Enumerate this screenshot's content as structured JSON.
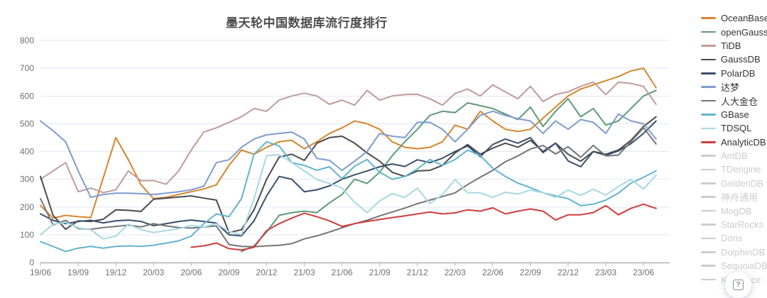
{
  "title": {
    "text": "墨天轮中国数据库流行度排行"
  },
  "help_button": {
    "label": "?"
  },
  "axis_colors": {
    "grid_line": "#E2E7F1",
    "axis_line": "#8F949E",
    "tick": "#B0B4BC",
    "label": "#6E7079"
  },
  "chart_data": {
    "type": "line",
    "title": "墨天轮中国数据库流行度排行",
    "xlabel": "",
    "ylabel": "",
    "ylim": [
      0,
      800
    ],
    "y_ticks": [
      0,
      100,
      200,
      300,
      400,
      500,
      600,
      700,
      800
    ],
    "grid": true,
    "legend_position": "right",
    "x_tick_interval": 3,
    "x_tick_labels": [
      "19/06",
      "19/09",
      "19/12",
      "20/03",
      "20/06",
      "20/09",
      "20/12",
      "21/03",
      "21/06",
      "21/09",
      "21/12",
      "22/03",
      "22/06",
      "22/09",
      "22/12",
      "23/03",
      "23/06"
    ],
    "x": [
      "19/06",
      "19/07",
      "19/08",
      "19/09",
      "19/10",
      "19/11",
      "19/12",
      "20/01",
      "20/02",
      "20/03",
      "20/04",
      "20/05",
      "20/06",
      "20/07",
      "20/08",
      "20/09",
      "20/10",
      "20/11",
      "20/12",
      "21/01",
      "21/02",
      "21/03",
      "21/04",
      "21/05",
      "21/06",
      "21/07",
      "21/08",
      "21/09",
      "21/10",
      "21/11",
      "21/12",
      "22/01",
      "22/02",
      "22/03",
      "22/04",
      "22/05",
      "22/06",
      "22/07",
      "22/08",
      "22/09",
      "22/10",
      "22/11",
      "22/12",
      "23/01",
      "23/02",
      "23/03",
      "23/04",
      "23/05",
      "23/06",
      "23/07"
    ],
    "series": [
      {
        "name": "OceanBase",
        "color": "#D6852C",
        "active": true,
        "values": [
          205,
          160,
          170,
          165,
          162,
          305,
          450,
          370,
          280,
          230,
          235,
          245,
          255,
          265,
          280,
          350,
          405,
          390,
          415,
          435,
          440,
          410,
          435,
          465,
          485,
          510,
          500,
          480,
          435,
          415,
          410,
          415,
          435,
          495,
          480,
          545,
          510,
          480,
          472,
          480,
          520,
          560,
          600,
          625,
          640,
          655,
          670,
          690,
          700,
          630
        ]
      },
      {
        "name": "openGauss",
        "color": "#5E9B77",
        "active": true,
        "values": [
          null,
          null,
          null,
          null,
          null,
          null,
          null,
          null,
          null,
          null,
          null,
          null,
          null,
          null,
          null,
          null,
          40,
          60,
          110,
          170,
          180,
          185,
          180,
          215,
          245,
          300,
          285,
          325,
          385,
          435,
          480,
          530,
          545,
          540,
          575,
          565,
          555,
          535,
          515,
          560,
          490,
          545,
          590,
          525,
          555,
          495,
          510,
          555,
          600,
          620
        ]
      },
      {
        "name": "TiDB",
        "color": "#C09C99",
        "active": true,
        "values": [
          300,
          330,
          360,
          255,
          268,
          252,
          262,
          330,
          295,
          295,
          282,
          330,
          405,
          470,
          485,
          505,
          525,
          555,
          545,
          585,
          600,
          610,
          600,
          570,
          585,
          567,
          620,
          585,
          600,
          605,
          606,
          590,
          567,
          609,
          625,
          600,
          640,
          615,
          590,
          635,
          580,
          605,
          615,
          635,
          650,
          605,
          650,
          645,
          635,
          570
        ]
      },
      {
        "name": "GaussDB",
        "color": "#4B4B4B",
        "active": true,
        "values": [
          310,
          170,
          120,
          150,
          148,
          156,
          190,
          188,
          184,
          228,
          232,
          236,
          240,
          232,
          225,
          108,
          118,
          190,
          300,
          380,
          390,
          368,
          430,
          450,
          455,
          430,
          395,
          365,
          325,
          310,
          330,
          332,
          350,
          395,
          425,
          390,
          412,
          430,
          415,
          440,
          400,
          430,
          390,
          365,
          400,
          390,
          405,
          440,
          490,
          525
        ]
      },
      {
        "name": "PolarDB",
        "color": "#39506B",
        "active": true,
        "values": [
          175,
          152,
          140,
          148,
          152,
          143,
          150,
          153,
          148,
          133,
          140,
          148,
          153,
          148,
          142,
          100,
          96,
          150,
          240,
          310,
          300,
          255,
          262,
          276,
          300,
          316,
          330,
          345,
          355,
          346,
          370,
          360,
          376,
          400,
          420,
          381,
          425,
          445,
          430,
          450,
          396,
          430,
          366,
          345,
          400,
          386,
          402,
          428,
          465,
          510
        ]
      },
      {
        "name": "达梦",
        "color": "#7E9CD0",
        "active": true,
        "values": [
          510,
          475,
          435,
          330,
          235,
          245,
          250,
          250,
          248,
          245,
          250,
          255,
          262,
          275,
          360,
          370,
          415,
          445,
          460,
          465,
          470,
          445,
          375,
          368,
          332,
          365,
          400,
          465,
          455,
          450,
          505,
          505,
          480,
          435,
          480,
          530,
          545,
          530,
          518,
          510,
          465,
          510,
          480,
          515,
          505,
          465,
          535,
          510,
          500,
          445
        ]
      },
      {
        "name": "人大金仓",
        "color": "#767676",
        "active": true,
        "values": [
          230,
          135,
          152,
          122,
          120,
          126,
          130,
          135,
          128,
          140,
          132,
          126,
          124,
          128,
          132,
          65,
          58,
          57,
          60,
          62,
          68,
          85,
          96,
          110,
          125,
          140,
          152,
          168,
          182,
          196,
          212,
          225,
          238,
          251,
          281,
          307,
          332,
          363,
          384,
          409,
          422,
          391,
          417,
          379,
          422,
          384,
          387,
          435,
          486,
          427
        ]
      },
      {
        "name": "GBase",
        "color": "#62B4CF",
        "active": true,
        "values": [
          75,
          58,
          40,
          52,
          58,
          52,
          58,
          60,
          58,
          62,
          70,
          78,
          95,
          140,
          175,
          165,
          230,
          390,
          435,
          420,
          360,
          350,
          332,
          345,
          302,
          347,
          371,
          325,
          300,
          310,
          337,
          371,
          350,
          371,
          405,
          385,
          340,
          310,
          286,
          270,
          251,
          240,
          230,
          205,
          210,
          225,
          250,
          286,
          307,
          330
        ]
      },
      {
        "name": "TDSQL",
        "color": "#A7D8E4",
        "active": true,
        "values": [
          100,
          138,
          145,
          125,
          118,
          85,
          95,
          138,
          118,
          108,
          115,
          122,
          133,
          128,
          140,
          112,
          100,
          230,
          385,
          388,
          360,
          330,
          299,
          285,
          268,
          217,
          180,
          222,
          248,
          235,
          268,
          212,
          245,
          299,
          251,
          251,
          235,
          253,
          247,
          261,
          251,
          235,
          261,
          242,
          264,
          243,
          274,
          299,
          265,
          315
        ]
      },
      {
        "name": "AnalyticDB",
        "color": "#D23C3C",
        "active": true,
        "values": [
          null,
          null,
          null,
          null,
          null,
          null,
          null,
          null,
          null,
          null,
          null,
          null,
          55,
          60,
          70,
          50,
          45,
          55,
          115,
          140,
          160,
          178,
          165,
          150,
          130,
          140,
          148,
          155,
          162,
          168,
          175,
          182,
          175,
          179,
          190,
          185,
          197,
          175,
          185,
          193,
          185,
          153,
          172,
          172,
          180,
          205,
          172,
          195,
          210,
          195
        ]
      },
      {
        "name": "AntDB",
        "color": "#cccccc",
        "active": false,
        "values": null
      },
      {
        "name": "TDengine",
        "color": "#cccccc",
        "active": false,
        "values": null
      },
      {
        "name": "GoldenDB",
        "color": "#cccccc",
        "active": false,
        "values": null
      },
      {
        "name": "神舟通用",
        "color": "#cccccc",
        "active": false,
        "values": null
      },
      {
        "name": "MogDB",
        "color": "#cccccc",
        "active": false,
        "values": null
      },
      {
        "name": "StarRocks",
        "color": "#cccccc",
        "active": false,
        "values": null
      },
      {
        "name": "Doris",
        "color": "#cccccc",
        "active": false,
        "values": null
      },
      {
        "name": "DolphinDB",
        "color": "#cccccc",
        "active": false,
        "values": null
      },
      {
        "name": "SequoiaDB",
        "color": "#cccccc",
        "active": false,
        "values": null
      },
      {
        "name": "Kyligence",
        "color": "#cccccc",
        "active": false,
        "values": null
      }
    ]
  }
}
